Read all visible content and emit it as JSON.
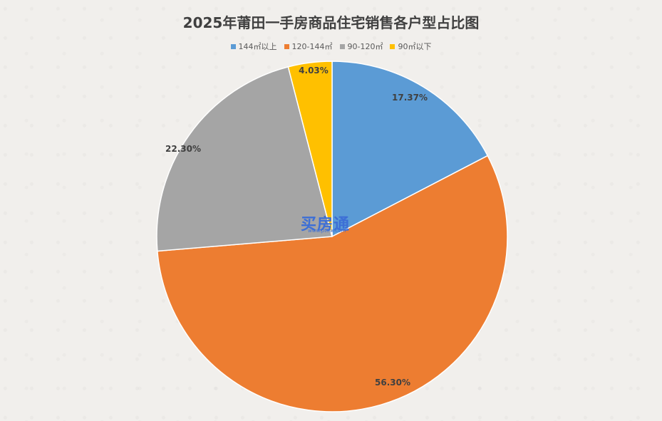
{
  "chart_data": {
    "type": "pie",
    "title": "2025年莆田一手房商品住宅销售各户型占比图",
    "categories": [
      "144㎡以上",
      "120-144㎡",
      "90-120㎡",
      "90㎡以下"
    ],
    "values": [
      17.37,
      56.3,
      22.3,
      4.03
    ],
    "labels": [
      "17.37%",
      "56.30%",
      "22.30%",
      "4.03%"
    ],
    "colors": [
      "#5b9bd5",
      "#ed7d31",
      "#a5a5a5",
      "#ffc000"
    ],
    "legend_position": "top"
  },
  "watermark": {
    "text": "买房通",
    "sub": "www.pttfw.com"
  }
}
